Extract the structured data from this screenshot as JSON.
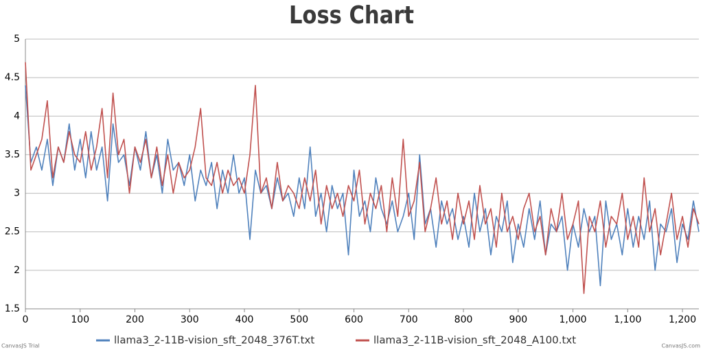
{
  "chart_data": {
    "type": "line",
    "title": "Loss Chart",
    "x": [
      0,
      10,
      20,
      30,
      40,
      50,
      60,
      70,
      80,
      90,
      100,
      110,
      120,
      130,
      140,
      150,
      160,
      170,
      180,
      190,
      200,
      210,
      220,
      230,
      240,
      250,
      260,
      270,
      280,
      290,
      300,
      310,
      320,
      330,
      340,
      350,
      360,
      370,
      380,
      390,
      400,
      410,
      420,
      430,
      440,
      450,
      460,
      470,
      480,
      490,
      500,
      510,
      520,
      530,
      540,
      550,
      560,
      570,
      580,
      590,
      600,
      610,
      620,
      630,
      640,
      650,
      660,
      670,
      680,
      690,
      700,
      710,
      720,
      730,
      740,
      750,
      760,
      770,
      780,
      790,
      800,
      810,
      820,
      830,
      840,
      850,
      860,
      870,
      880,
      890,
      900,
      910,
      920,
      930,
      940,
      950,
      960,
      970,
      980,
      990,
      1000,
      1010,
      1020,
      1030,
      1040,
      1050,
      1060,
      1070,
      1080,
      1090,
      1100,
      1110,
      1120,
      1130,
      1140,
      1150,
      1160,
      1170,
      1180,
      1190,
      1200,
      1210,
      1220,
      1230
    ],
    "series": [
      {
        "name": "llama3_2-11B-vision_sft_2048_376T.txt",
        "color": "#4f81bc",
        "values": [
          4.4,
          3.4,
          3.6,
          3.3,
          3.7,
          3.1,
          3.6,
          3.4,
          3.9,
          3.3,
          3.7,
          3.2,
          3.8,
          3.3,
          3.6,
          2.9,
          3.9,
          3.4,
          3.5,
          3.1,
          3.6,
          3.3,
          3.8,
          3.2,
          3.5,
          3.0,
          3.7,
          3.3,
          3.4,
          3.1,
          3.5,
          2.9,
          3.3,
          3.1,
          3.4,
          2.8,
          3.3,
          3.0,
          3.5,
          3.0,
          3.2,
          2.4,
          3.3,
          3.0,
          3.1,
          2.8,
          3.2,
          2.9,
          3.0,
          2.7,
          3.2,
          2.8,
          3.6,
          2.7,
          3.0,
          2.5,
          3.1,
          2.8,
          3.0,
          2.2,
          3.3,
          2.7,
          2.9,
          2.5,
          3.2,
          2.8,
          2.6,
          2.9,
          2.5,
          2.7,
          3.0,
          2.4,
          3.5,
          2.6,
          2.8,
          2.3,
          2.9,
          2.6,
          2.8,
          2.4,
          2.7,
          2.3,
          3.0,
          2.5,
          2.8,
          2.2,
          2.7,
          2.5,
          2.9,
          2.1,
          2.6,
          2.3,
          2.8,
          2.4,
          2.9,
          2.2,
          2.6,
          2.5,
          2.7,
          2.0,
          2.6,
          2.3,
          2.8,
          2.5,
          2.7,
          1.8,
          2.9,
          2.4,
          2.6,
          2.2,
          2.8,
          2.3,
          2.7,
          2.4,
          2.9,
          2.0,
          2.6,
          2.5,
          2.8,
          2.1,
          2.6,
          2.4,
          2.9,
          2.5
        ]
      },
      {
        "name": "llama3_2-11B-vision_sft_2048_A100.txt",
        "color": "#c0504e",
        "values": [
          4.7,
          3.3,
          3.5,
          3.7,
          4.2,
          3.2,
          3.6,
          3.4,
          3.8,
          3.5,
          3.4,
          3.8,
          3.3,
          3.6,
          4.1,
          3.2,
          4.3,
          3.5,
          3.7,
          3.0,
          3.6,
          3.4,
          3.7,
          3.2,
          3.6,
          3.1,
          3.5,
          3.0,
          3.4,
          3.2,
          3.3,
          3.6,
          4.1,
          3.2,
          3.1,
          3.4,
          3.0,
          3.3,
          3.1,
          3.2,
          3.0,
          3.5,
          4.4,
          3.0,
          3.2,
          2.8,
          3.4,
          2.9,
          3.1,
          3.0,
          2.8,
          3.2,
          2.9,
          3.3,
          2.6,
          3.1,
          2.8,
          3.0,
          2.7,
          3.1,
          2.9,
          3.3,
          2.6,
          3.0,
          2.8,
          3.1,
          2.5,
          3.2,
          2.7,
          3.7,
          2.7,
          2.9,
          3.4,
          2.5,
          2.8,
          3.2,
          2.6,
          2.9,
          2.4,
          3.0,
          2.6,
          2.9,
          2.4,
          3.1,
          2.6,
          2.8,
          2.3,
          3.0,
          2.5,
          2.7,
          2.4,
          2.8,
          3.0,
          2.5,
          2.7,
          2.2,
          2.8,
          2.5,
          3.0,
          2.4,
          2.6,
          2.9,
          1.7,
          2.7,
          2.5,
          2.9,
          2.3,
          2.7,
          2.6,
          3.0,
          2.4,
          2.7,
          2.3,
          3.2,
          2.5,
          2.8,
          2.2,
          2.6,
          3.0,
          2.4,
          2.7,
          2.3,
          2.8,
          2.6
        ]
      }
    ],
    "xlim": [
      0,
      1230
    ],
    "xticks": [
      0,
      100,
      200,
      300,
      400,
      500,
      600,
      700,
      800,
      900,
      {
        "value": 1000,
        "label": "1,000"
      },
      {
        "value": 1100,
        "label": "1,100"
      },
      {
        "value": 1200,
        "label": "1,200"
      }
    ],
    "ylim": [
      1.5,
      5
    ],
    "yticks": [
      1.5,
      2,
      2.5,
      3,
      3.5,
      4,
      4.5,
      5
    ],
    "grid": true,
    "legend": "bottom",
    "watermarks": [
      "CanvasJS Trial",
      "CanvasJS.com"
    ]
  }
}
